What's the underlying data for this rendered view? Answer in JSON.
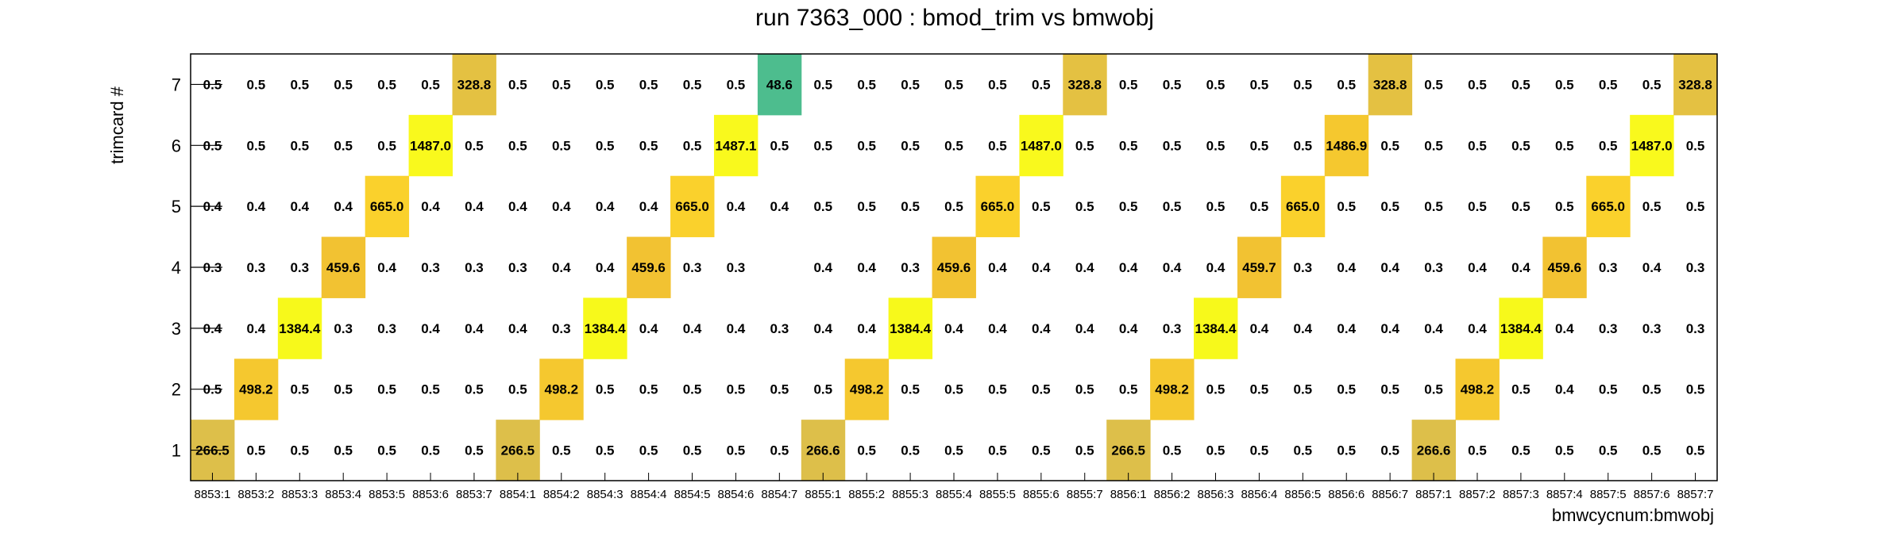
{
  "chart_data": {
    "type": "heatmap",
    "title": "run 7363_000 : bmod_trim vs bmwobj",
    "xlabel": "bmwcycnum:bmwobj",
    "ylabel": "trimcard #",
    "x_categories": [
      "8853:1",
      "8853:2",
      "8853:3",
      "8853:4",
      "8853:5",
      "8853:6",
      "8853:7",
      "8854:1",
      "8854:2",
      "8854:3",
      "8854:4",
      "8854:5",
      "8854:6",
      "8854:7",
      "8855:1",
      "8855:2",
      "8855:3",
      "8855:4",
      "8855:5",
      "8855:6",
      "8855:7",
      "8856:1",
      "8856:2",
      "8856:3",
      "8856:4",
      "8856:5",
      "8856:6",
      "8856:7",
      "8857:1",
      "8857:2",
      "8857:3",
      "8857:4",
      "8857:5",
      "8857:6",
      "8857:7"
    ],
    "y_categories": [
      "1",
      "2",
      "3",
      "4",
      "5",
      "6",
      "7"
    ],
    "values": [
      [
        "266.5",
        "0.5",
        "0.5",
        "0.5",
        "0.5",
        "0.5",
        "0.5",
        "266.5",
        "0.5",
        "0.5",
        "0.5",
        "0.5",
        "0.5",
        "0.5",
        "266.6",
        "0.5",
        "0.5",
        "0.5",
        "0.5",
        "0.5",
        "0.5",
        "266.5",
        "0.5",
        "0.5",
        "0.5",
        "0.5",
        "0.5",
        "0.5",
        "266.6",
        "0.5",
        "0.5",
        "0.5",
        "0.5",
        "0.5",
        "0.5"
      ],
      [
        "0.5",
        "498.2",
        "0.5",
        "0.5",
        "0.5",
        "0.5",
        "0.5",
        "0.5",
        "498.2",
        "0.5",
        "0.5",
        "0.5",
        "0.5",
        "0.5",
        "0.5",
        "498.2",
        "0.5",
        "0.5",
        "0.5",
        "0.5",
        "0.5",
        "0.5",
        "498.2",
        "0.5",
        "0.5",
        "0.5",
        "0.5",
        "0.5",
        "0.5",
        "498.2",
        "0.5",
        "0.4",
        "0.5",
        "0.5",
        "0.5"
      ],
      [
        "0.4",
        "0.4",
        "1384.4",
        "0.3",
        "0.3",
        "0.4",
        "0.4",
        "0.4",
        "0.3",
        "1384.4",
        "0.4",
        "0.4",
        "0.4",
        "0.3",
        "0.4",
        "0.4",
        "1384.4",
        "0.4",
        "0.4",
        "0.4",
        "0.4",
        "0.4",
        "0.3",
        "1384.4",
        "0.4",
        "0.4",
        "0.4",
        "0.4",
        "0.4",
        "0.4",
        "1384.4",
        "0.4",
        "0.3",
        "0.3",
        "0.3"
      ],
      [
        "0.3",
        "0.3",
        "0.3",
        "459.6",
        "0.4",
        "0.3",
        "0.3",
        "0.3",
        "0.4",
        "0.4",
        "459.6",
        "0.3",
        "0.3",
        "",
        "0.4",
        "0.4",
        "0.3",
        "459.6",
        "0.4",
        "0.4",
        "0.4",
        "0.4",
        "0.4",
        "0.4",
        "459.7",
        "0.3",
        "0.4",
        "0.4",
        "0.3",
        "0.4",
        "0.4",
        "459.6",
        "0.3",
        "0.4",
        "0.3"
      ],
      [
        "0.4",
        "0.4",
        "0.4",
        "0.4",
        "665.0",
        "0.4",
        "0.4",
        "0.4",
        "0.4",
        "0.4",
        "0.4",
        "665.0",
        "0.4",
        "0.4",
        "0.5",
        "0.5",
        "0.5",
        "0.5",
        "665.0",
        "0.5",
        "0.5",
        "0.5",
        "0.5",
        "0.5",
        "0.5",
        "665.0",
        "0.5",
        "0.5",
        "0.5",
        "0.5",
        "0.5",
        "0.5",
        "665.0",
        "0.5",
        "0.5"
      ],
      [
        "0.5",
        "0.5",
        "0.5",
        "0.5",
        "0.5",
        "1487.0",
        "0.5",
        "0.5",
        "0.5",
        "0.5",
        "0.5",
        "0.5",
        "1487.1",
        "0.5",
        "0.5",
        "0.5",
        "0.5",
        "0.5",
        "0.5",
        "1487.0",
        "0.5",
        "0.5",
        "0.5",
        "0.5",
        "0.5",
        "0.5",
        "1486.9",
        "0.5",
        "0.5",
        "0.5",
        "0.5",
        "0.5",
        "0.5",
        "1487.0",
        "0.5"
      ],
      [
        "0.5",
        "0.5",
        "0.5",
        "0.5",
        "0.5",
        "0.5",
        "328.8",
        "0.5",
        "0.5",
        "0.5",
        "0.5",
        "0.5",
        "0.5",
        "48.6",
        "0.5",
        "0.5",
        "0.5",
        "0.5",
        "0.5",
        "0.5",
        "328.8",
        "0.5",
        "0.5",
        "0.5",
        "0.5",
        "0.5",
        "0.5",
        "328.8",
        "0.5",
        "0.5",
        "0.5",
        "0.5",
        "0.5",
        "0.5",
        "328.8"
      ]
    ],
    "grid": false,
    "legend": "none",
    "colors": {
      "266": "#ddbf4a",
      "328": "#e4c142",
      "459": "#f2c232",
      "498": "#f5c82f",
      "665": "#fad12c",
      "1384": "#f7f91b",
      "1487": "#f9f91d",
      "48": "#4dbd8e"
    }
  }
}
